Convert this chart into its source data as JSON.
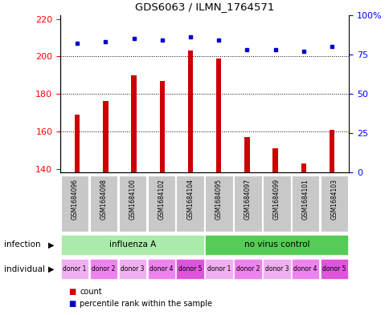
{
  "title": "GDS6063 / ILMN_1764571",
  "samples": [
    "GSM1684096",
    "GSM1684098",
    "GSM1684100",
    "GSM1684102",
    "GSM1684104",
    "GSM1684095",
    "GSM1684097",
    "GSM1684099",
    "GSM1684101",
    "GSM1684103"
  ],
  "counts": [
    169,
    176,
    190,
    187,
    203,
    199,
    157,
    151,
    143,
    161
  ],
  "percentiles": [
    82,
    83,
    85,
    84,
    86,
    84,
    78,
    78,
    77,
    80
  ],
  "infection_groups": [
    {
      "label": "influenza A",
      "start": 0,
      "end": 5,
      "color": "#AAEAAA"
    },
    {
      "label": "no virus control",
      "start": 5,
      "end": 10,
      "color": "#55CC55"
    }
  ],
  "individual_labels": [
    "donor 1",
    "donor 2",
    "donor 3",
    "donor 4",
    "donor 5",
    "donor 1",
    "donor 2",
    "donor 3",
    "donor 4",
    "donor 5"
  ],
  "individual_colors": [
    "#F0B0F0",
    "#EE82EE",
    "#F0B0F0",
    "#EE82EE",
    "#DD55DD",
    "#F0B0F0",
    "#EE82EE",
    "#F0B0F0",
    "#EE82EE",
    "#DD55DD"
  ],
  "ylim_left": [
    138,
    222
  ],
  "ylim_right": [
    0,
    100
  ],
  "yticks_left": [
    140,
    160,
    180,
    200,
    220
  ],
  "yticks_right": [
    0,
    25,
    50,
    75,
    100
  ],
  "bar_color": "#CC0000",
  "dot_color": "#0000CC",
  "grid_color": "#000000",
  "legend_count_color": "#CC0000",
  "legend_pct_color": "#0000CC",
  "sample_bg": "#C8C8C8"
}
